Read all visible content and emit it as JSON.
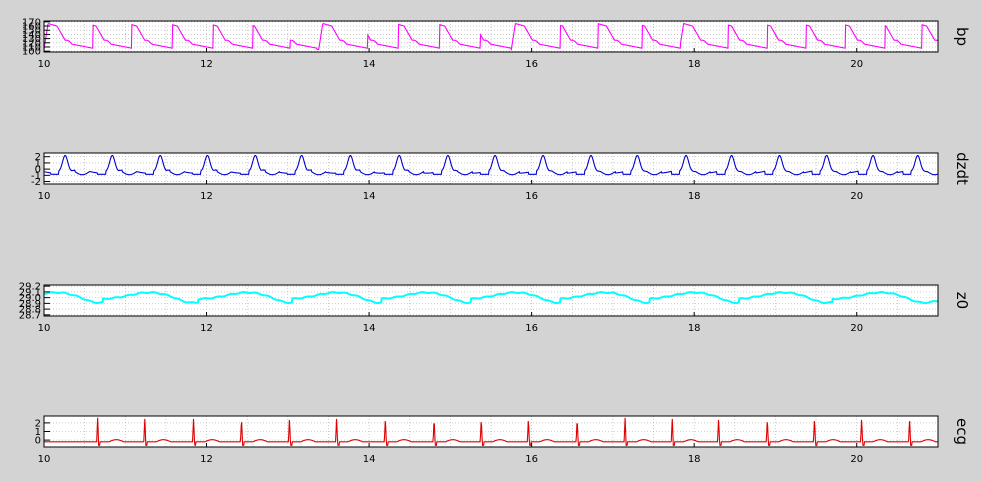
{
  "chart_data": [
    {
      "type": "line",
      "channel": "bp",
      "color": "#ff00ff",
      "xlim": [
        10,
        21
      ],
      "xticks": [
        10,
        12,
        14,
        16,
        18,
        20
      ],
      "ylim": [
        98,
        172
      ],
      "yticks": [
        "170",
        "160",
        "150",
        "140",
        "130",
        "120",
        "110",
        "100"
      ],
      "ytick_values": [
        170,
        160,
        150,
        140,
        130,
        120,
        110,
        100
      ],
      "grid": true,
      "series": [
        {
          "beat_times": [
            10.0,
            10.48,
            10.98,
            11.48,
            11.97,
            12.43,
            12.76,
            13.38,
            13.76,
            14.27,
            14.77,
            15.15,
            15.75,
            16.22,
            16.76,
            17.23,
            17.82,
            18.3,
            18.78,
            19.26,
            19.75,
            20.2,
            20.7
          ],
          "peak": 166,
          "baseline": 117,
          "trough": 104
        }
      ]
    },
    {
      "type": "line",
      "channel": "dzdt",
      "color": "#0000cc",
      "xlim": [
        10,
        21
      ],
      "xticks": [
        10,
        12,
        14,
        16,
        18,
        20
      ],
      "ylim": [
        -2.4,
        2.6
      ],
      "yticks": [
        "2",
        "1",
        "0",
        "-1",
        "-2"
      ],
      "ytick_values": [
        2,
        1,
        0,
        -1,
        -2
      ],
      "grid": true,
      "series": [
        {
          "beat_times": [
            10.26,
            10.84,
            11.43,
            12.01,
            12.6,
            13.17,
            13.77,
            14.37,
            14.97,
            15.55,
            16.14,
            16.73,
            17.3,
            17.9,
            18.46,
            19.05,
            19.63,
            20.2,
            20.75
          ],
          "peak": 2.2,
          "baseline": -0.4,
          "trough": -1.4
        }
      ]
    },
    {
      "type": "line",
      "channel": "z0",
      "color": "#00ffff",
      "xlim": [
        10,
        21
      ],
      "xticks": [
        10,
        12,
        14,
        16,
        18,
        20
      ],
      "ylim": [
        28.68,
        29.22
      ],
      "yticks": [
        "29.2",
        "29.1",
        "29.0",
        "28.9",
        "28.8",
        "28.7"
      ],
      "ytick_values": [
        29.2,
        29.1,
        29.0,
        28.9,
        28.8,
        28.7
      ],
      "grid": true,
      "series": [
        {
          "resp_peaks": [
            10.15,
            11.3,
            12.5,
            13.6,
            14.7,
            15.8,
            16.9,
            18.0,
            19.1,
            20.3
          ],
          "mean": 28.97,
          "amplitude": 0.12
        }
      ]
    },
    {
      "type": "line",
      "channel": "ecg",
      "color": "#e00000",
      "xlim": [
        10,
        21
      ],
      "xticks": [
        10,
        12,
        14,
        16,
        18,
        20
      ],
      "ylim": [
        -0.8,
        2.8
      ],
      "yticks": [
        "2",
        "1",
        "0"
      ],
      "ytick_values": [
        2,
        1,
        0
      ],
      "grid": true,
      "series": [
        {
          "r_peaks": [
            10.66,
            11.24,
            11.84,
            12.43,
            13.02,
            13.6,
            14.2,
            14.8,
            15.38,
            15.96,
            16.56,
            17.15,
            17.73,
            18.3,
            18.9,
            19.48,
            20.06,
            20.65
          ],
          "r_height": 2.6,
          "baseline": -0.2
        }
      ]
    }
  ]
}
